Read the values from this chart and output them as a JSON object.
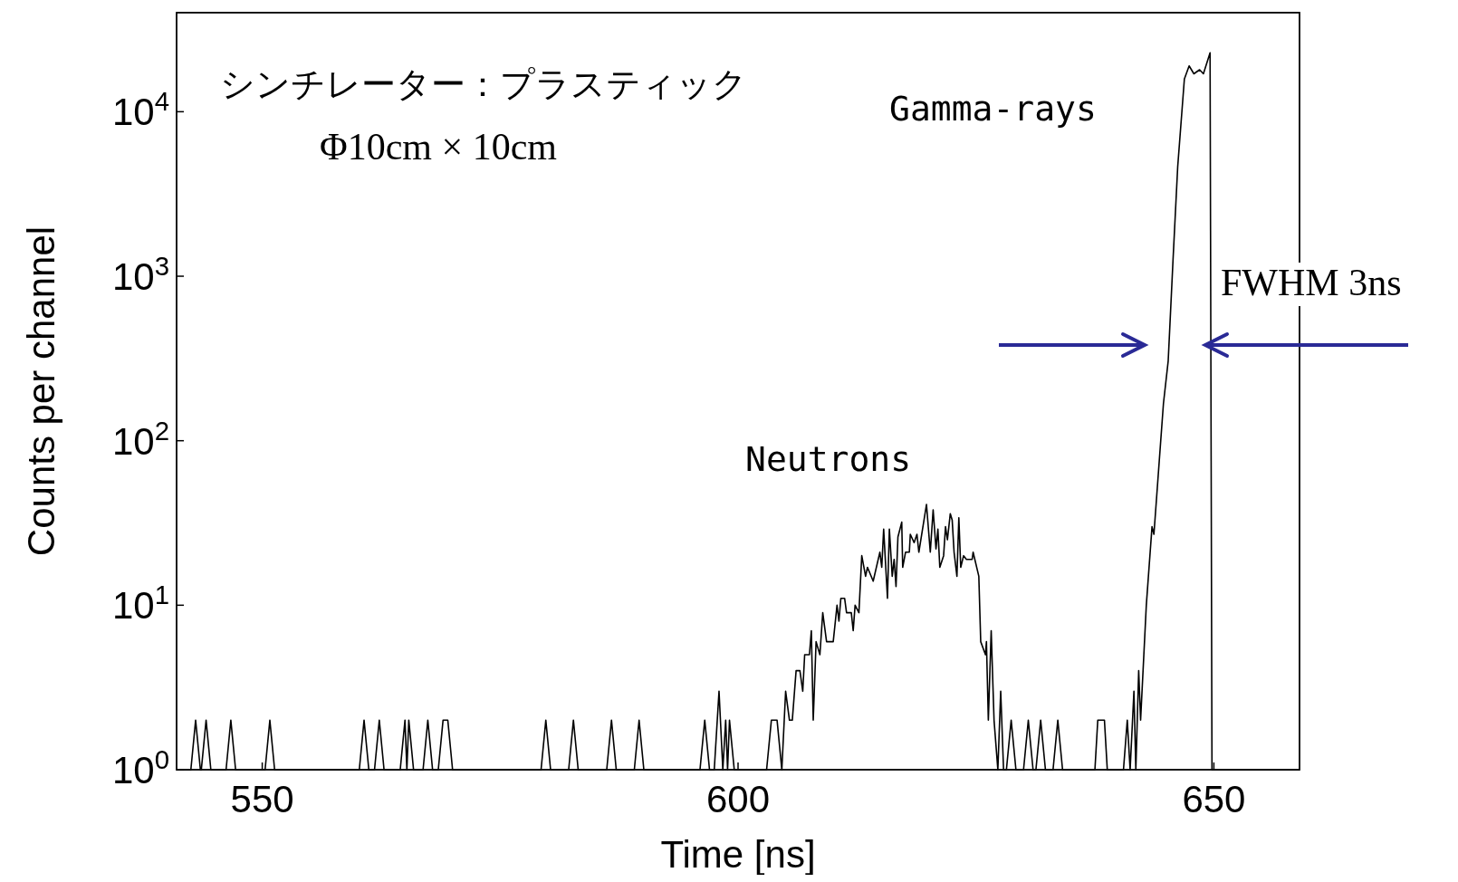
{
  "chart_data": {
    "type": "line",
    "xlabel": "Time [ns]",
    "ylabel": "Counts per channel",
    "log": "y",
    "grid": false,
    "xlim": [
      541,
      659
    ],
    "ylim": [
      1,
      40000
    ],
    "xticks": [
      550,
      600,
      650
    ],
    "yticks": [
      {
        "value": 1,
        "label": "10$^{0}$"
      },
      {
        "value": 10,
        "label": "10$^{1}$"
      },
      {
        "value": 100,
        "label": "10$^{2}$"
      },
      {
        "value": 1000,
        "label": "10$^{3}$"
      },
      {
        "value": 10000,
        "label": "10$^{4}$"
      }
    ],
    "annotations": [
      "シンチレーター：プラスティック",
      "Φ10cm × 10cm",
      "Gamma-rays",
      "Neutrons",
      "FWHM 3ns"
    ],
    "series": [
      {
        "color": "#000000",
        "x": [
          541,
          542.5,
          543,
          543.5,
          543.6,
          544.1,
          544.6,
          546.2,
          546.7,
          547.2,
          550.3,
          550.8,
          551.3,
          560.2,
          560.7,
          561.2,
          561.8,
          562.3,
          562.8,
          564.5,
          565,
          565.2,
          565.4,
          565.9,
          566.9,
          567.4,
          567.9,
          568.5,
          569,
          569.5,
          570,
          579.3,
          579.8,
          580.3,
          582.2,
          582.7,
          583.2,
          586.2,
          586.7,
          587.2,
          589.1,
          589.6,
          590.1,
          596,
          596.5,
          597,
          597.5,
          598,
          598.4,
          598.7,
          598.9,
          599.1,
          599.6,
          603,
          603.5,
          604.1,
          604.6,
          605,
          605.4,
          605.7,
          606.1,
          606.5,
          606.8,
          607,
          607.5,
          607.7,
          607.9,
          608.2,
          608.6,
          608.9,
          609.3,
          610,
          610.4,
          610.6,
          610.8,
          611.2,
          611.4,
          611.9,
          612.1,
          612.3,
          612.7,
          613,
          613.4,
          613.6,
          614.2,
          614.9,
          615.1,
          615.3,
          615.7,
          615.9,
          616.2,
          616.4,
          616.6,
          616.8,
          617.2,
          617.3,
          617.6,
          618,
          618.1,
          618.5,
          618.8,
          619,
          619.8,
          620.2,
          620.5,
          620.8,
          621,
          621.2,
          621.6,
          621.8,
          622,
          622.3,
          622.5,
          622.7,
          623,
          623.2,
          623.4,
          623.7,
          624,
          624.6,
          624.7,
          625.3,
          625.5,
          626,
          626.1,
          626.3,
          626.6,
          626.9,
          627.3,
          627.6,
          627.9,
          628.2,
          628.7,
          629.2,
          630,
          630.5,
          631,
          631.3,
          631.8,
          632.3,
          633.1,
          633.6,
          634.1,
          637.5,
          637.8,
          638.5,
          638.8,
          640.5,
          640.9,
          641.2,
          641.6,
          641.8,
          642.1,
          642.3,
          642.9,
          643.5,
          643.7,
          644.7,
          645.2,
          645.7,
          646.2,
          646.9,
          647.4,
          647.9,
          648.5,
          648.9,
          649.6,
          649.8,
          659
        ],
        "values": [
          1,
          1,
          2,
          1,
          1,
          2,
          1,
          1,
          2,
          1,
          1,
          2,
          1,
          1,
          2,
          1,
          1,
          2,
          1,
          1,
          2,
          1,
          2,
          1,
          1,
          2,
          1,
          1,
          2,
          2,
          1,
          1,
          2,
          1,
          1,
          2,
          1,
          1,
          2,
          1,
          1,
          2,
          1,
          1,
          2,
          1,
          1,
          3,
          1,
          2,
          1,
          2,
          1,
          1,
          2,
          2,
          1,
          3,
          2,
          2,
          4,
          4,
          3,
          5,
          5,
          7,
          2,
          6,
          5,
          9,
          6,
          6,
          10,
          8,
          11,
          11,
          9,
          9,
          7,
          10,
          9,
          20,
          15,
          17,
          14,
          21,
          17,
          29,
          11,
          29,
          15,
          19,
          13,
          26,
          32,
          17,
          21,
          21,
          27,
          24,
          27,
          21,
          41,
          21,
          38,
          22,
          29,
          17,
          20,
          30,
          25,
          36,
          33,
          21,
          15,
          34,
          17,
          20,
          19,
          19,
          21,
          15,
          6,
          5,
          6,
          2,
          7,
          2,
          1,
          3,
          1,
          1,
          2,
          1,
          1,
          2,
          1,
          1,
          2,
          1,
          1,
          2,
          1,
          1,
          2,
          2,
          1,
          1,
          2,
          1,
          3,
          1,
          4,
          2,
          10,
          30,
          27,
          168,
          305,
          1230,
          4640,
          15800,
          19000,
          17000,
          18000,
          17000,
          22800,
          1,
          1
        ]
      }
    ]
  }
}
